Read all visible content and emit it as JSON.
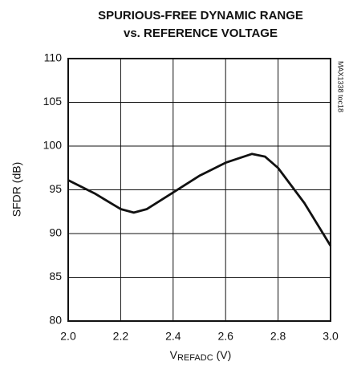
{
  "chart_data": {
    "type": "line",
    "title": [
      "SPURIOUS-FREE DYNAMIC RANGE",
      "vs. REFERENCE VOLTAGE"
    ],
    "y_label": "SFDR (dB)",
    "x_label": [
      "V",
      "REFADC",
      "(V)"
    ],
    "annotation": "MAX1338 toc18",
    "x": [
      2.0,
      2.1,
      2.2,
      2.25,
      2.3,
      2.4,
      2.5,
      2.6,
      2.7,
      2.75,
      2.8,
      2.9,
      3.0
    ],
    "series": [
      {
        "name": "SFDR",
        "color": "#111111",
        "values": [
          96.1,
          94.6,
          92.8,
          92.4,
          92.8,
          94.7,
          96.6,
          98.1,
          99.1,
          98.8,
          97.5,
          93.5,
          88.6
        ]
      }
    ],
    "xlim": [
      2.0,
      3.0
    ],
    "xticks": [
      {
        "value": 2.0,
        "label": "2.0"
      },
      2.2,
      2.4,
      2.6,
      2.8,
      {
        "value": 3.0,
        "label": "3.0"
      }
    ],
    "ylim": [
      80,
      110
    ],
    "yticks": [
      80,
      85,
      90,
      95,
      100,
      105,
      110
    ],
    "grid": true
  }
}
